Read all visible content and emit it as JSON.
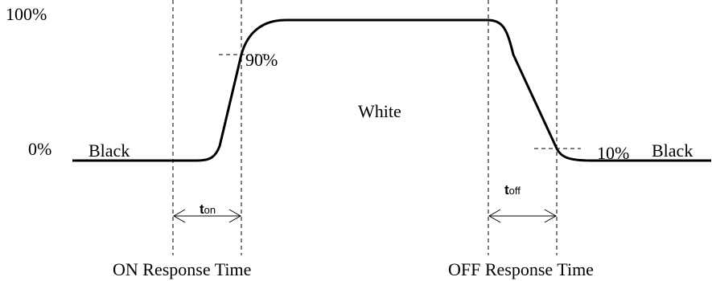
{
  "levels": {
    "top": "100%",
    "bottom": "0%"
  },
  "markers": {
    "ninety": "90%",
    "ten": "10%"
  },
  "states": {
    "left": "Black",
    "middle": "White",
    "right": "Black"
  },
  "timings": {
    "on": {
      "base": "t",
      "sub": "on"
    },
    "off": {
      "base": "t",
      "sub": "off"
    }
  },
  "captions": {
    "on": "ON Response Time",
    "off": "OFF Response Time"
  }
}
